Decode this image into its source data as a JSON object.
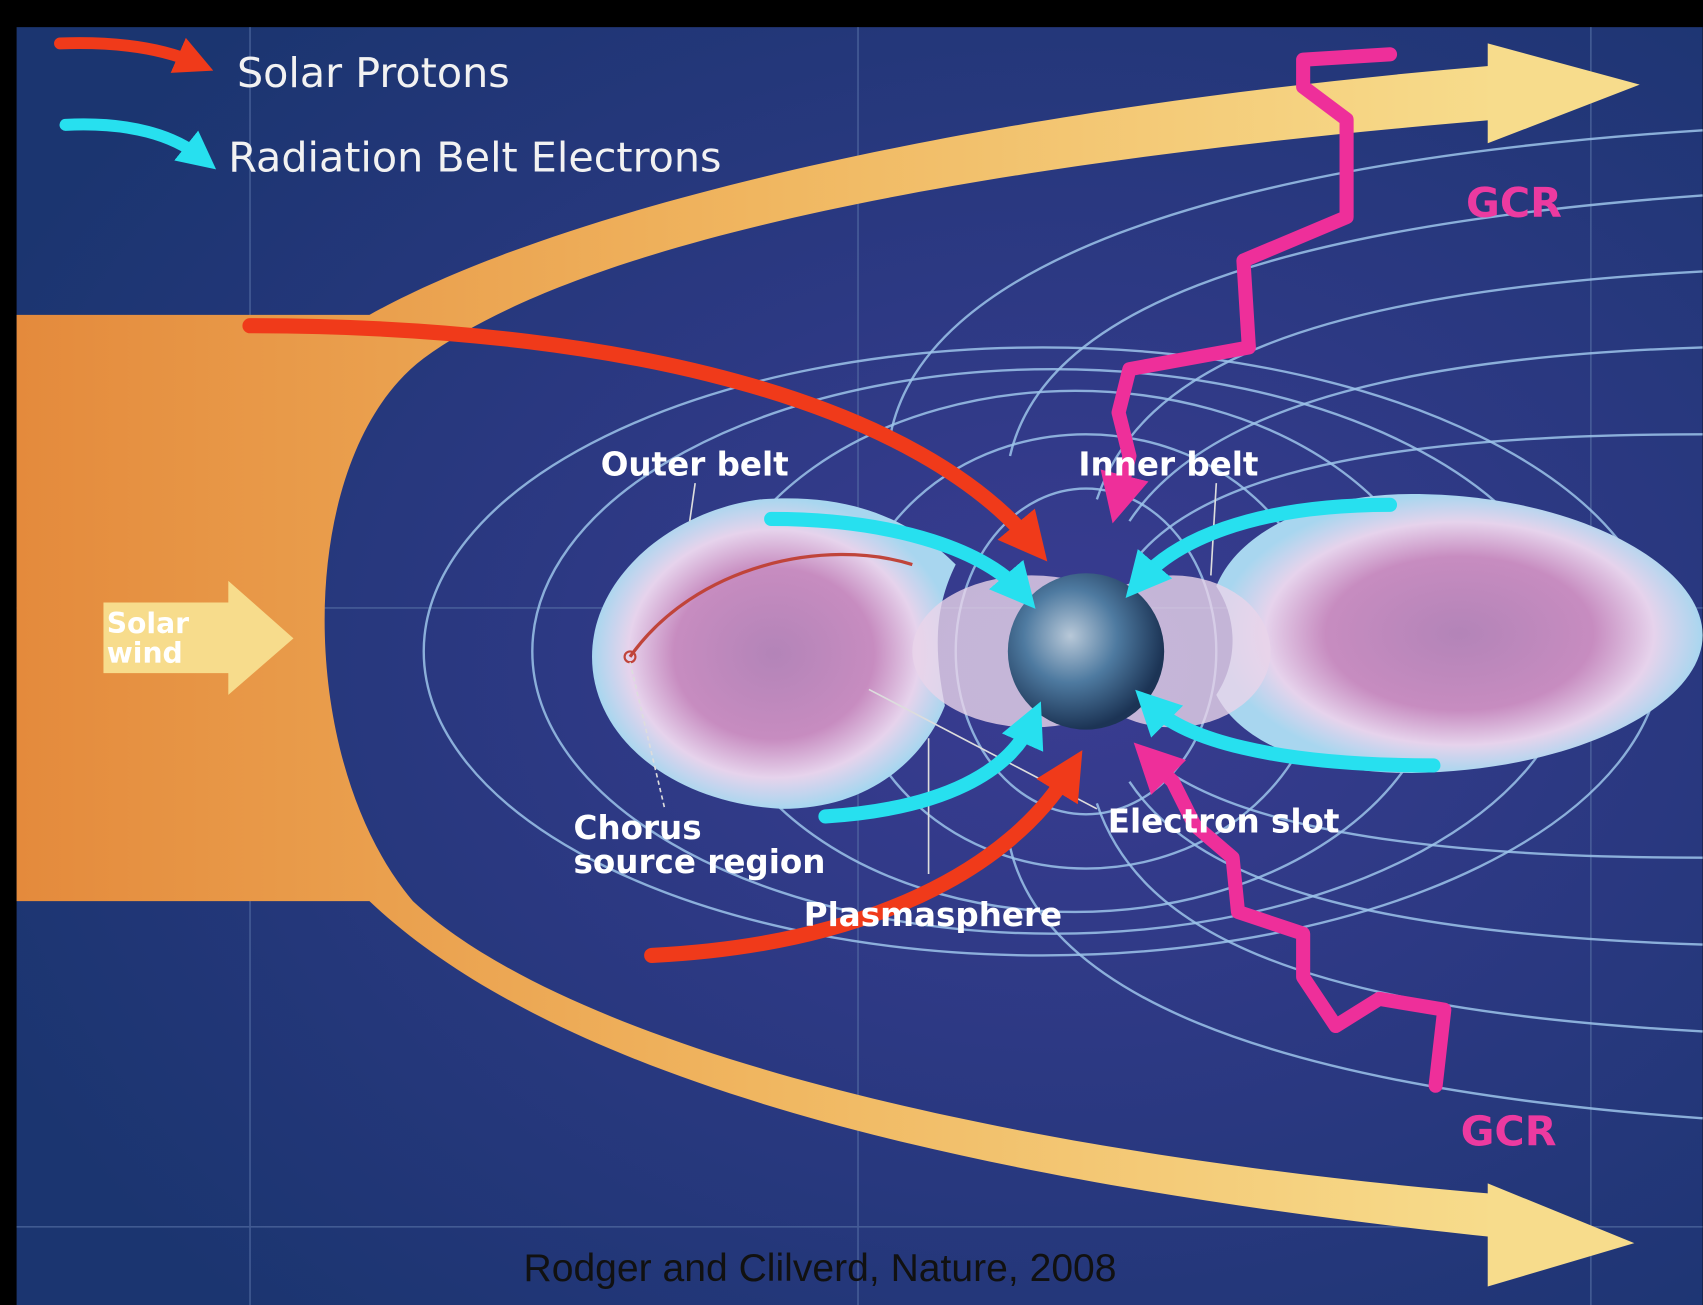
{
  "legend": [
    {
      "label": "Solar Protons"
    },
    {
      "label": "Radiation Belt Electrons"
    }
  ],
  "labels": {
    "outer_belt": "Outer belt",
    "inner_belt": "Inner belt",
    "solar_wind": [
      "Solar",
      "wind"
    ],
    "chorus": [
      "Chorus",
      "source region"
    ],
    "electron_slot": "Electron slot",
    "plasmasphere": "Plasmasphere"
  },
  "gcr_labels": [
    "GCR",
    "GCR"
  ],
  "caption": "Rodger and Clilverd, Nature, 2008"
}
